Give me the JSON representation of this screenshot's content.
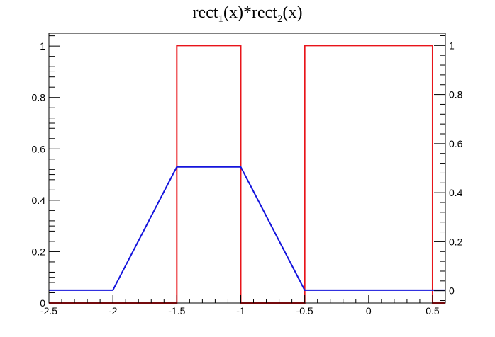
{
  "chart_data": {
    "type": "line",
    "title": {
      "parts": [
        {
          "text": "rect",
          "sub": false
        },
        {
          "text": "1",
          "sub": true
        },
        {
          "text": "(x)*rect",
          "sub": false
        },
        {
          "text": "2",
          "sub": true
        },
        {
          "text": "(x)",
          "sub": false
        }
      ]
    },
    "xlabel": "",
    "ylabel": "",
    "xlim": [
      -2.5,
      0.6
    ],
    "ylim_left": [
      0,
      1.05
    ],
    "ylim_right": [
      -0.05,
      1.05
    ],
    "x_ticks": [
      -2.5,
      -2,
      -1.5,
      -1,
      -0.5,
      0,
      0.5
    ],
    "x_tick_labels": [
      "-2.5",
      "-2",
      "-1.5",
      "-1",
      "-0.5",
      "0",
      "0.5"
    ],
    "y_left_ticks": [
      0,
      0.2,
      0.4,
      0.6,
      0.8,
      1
    ],
    "y_left_tick_labels": [
      "0",
      "0.2",
      "0.4",
      "0.6",
      "0.8",
      "1"
    ],
    "y_right_ticks": [
      0,
      0.2,
      0.4,
      0.6,
      0.8,
      1
    ],
    "y_right_tick_labels": [
      "0",
      "0.2",
      "0.4",
      "0.6",
      "0.8",
      "1"
    ],
    "grid": false,
    "series": [
      {
        "color": "#e8141a",
        "axis": "right",
        "x": [
          -2.5,
          -1.5,
          -1.5,
          -1.0,
          -1.0,
          -0.5,
          -0.5,
          0.5,
          0.5,
          0.6
        ],
        "y": [
          -0.05,
          -0.05,
          1.0,
          1.0,
          -0.05,
          -0.05,
          1.0,
          1.0,
          -0.05,
          -0.05
        ]
      },
      {
        "color": "#1414dc",
        "axis": "left",
        "x": [
          -2.5,
          -2.0,
          -1.5,
          -1.0,
          -0.5,
          0.6
        ],
        "y": [
          0.05,
          0.05,
          0.53,
          0.53,
          0.05,
          0.05
        ]
      }
    ]
  }
}
